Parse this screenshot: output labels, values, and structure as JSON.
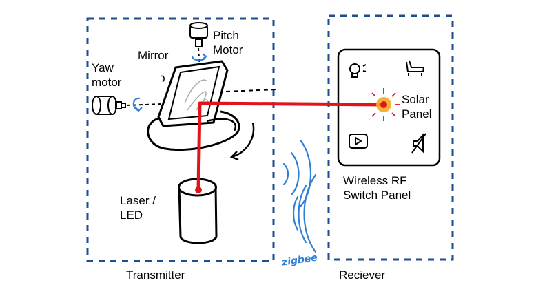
{
  "labels": {
    "pitch_motor_line1": "Pitch",
    "pitch_motor_line2": "Motor",
    "mirror": "Mirror",
    "yaw_motor_line1": "Yaw",
    "yaw_motor_line2": "motor",
    "laser_line1": "Laser /",
    "laser_line2": "LED",
    "solar_line1": "Solar",
    "solar_line2": "Panel",
    "switch_panel_line1": "Wireless RF",
    "switch_panel_line2": "Switch Panel",
    "transmitter": "Transmitter",
    "receiver": "Reciever",
    "wireless": "zigbee"
  },
  "colors": {
    "box_border": "#1f4e8c",
    "laser_beam": "#e0141b",
    "signal_waves": "#2f7fd6",
    "solar_glow": "#f5a623",
    "ink": "#000000"
  },
  "icons": [
    "bulb-icon",
    "bathtub-icon",
    "media-player-icon",
    "speaker-icon"
  ]
}
